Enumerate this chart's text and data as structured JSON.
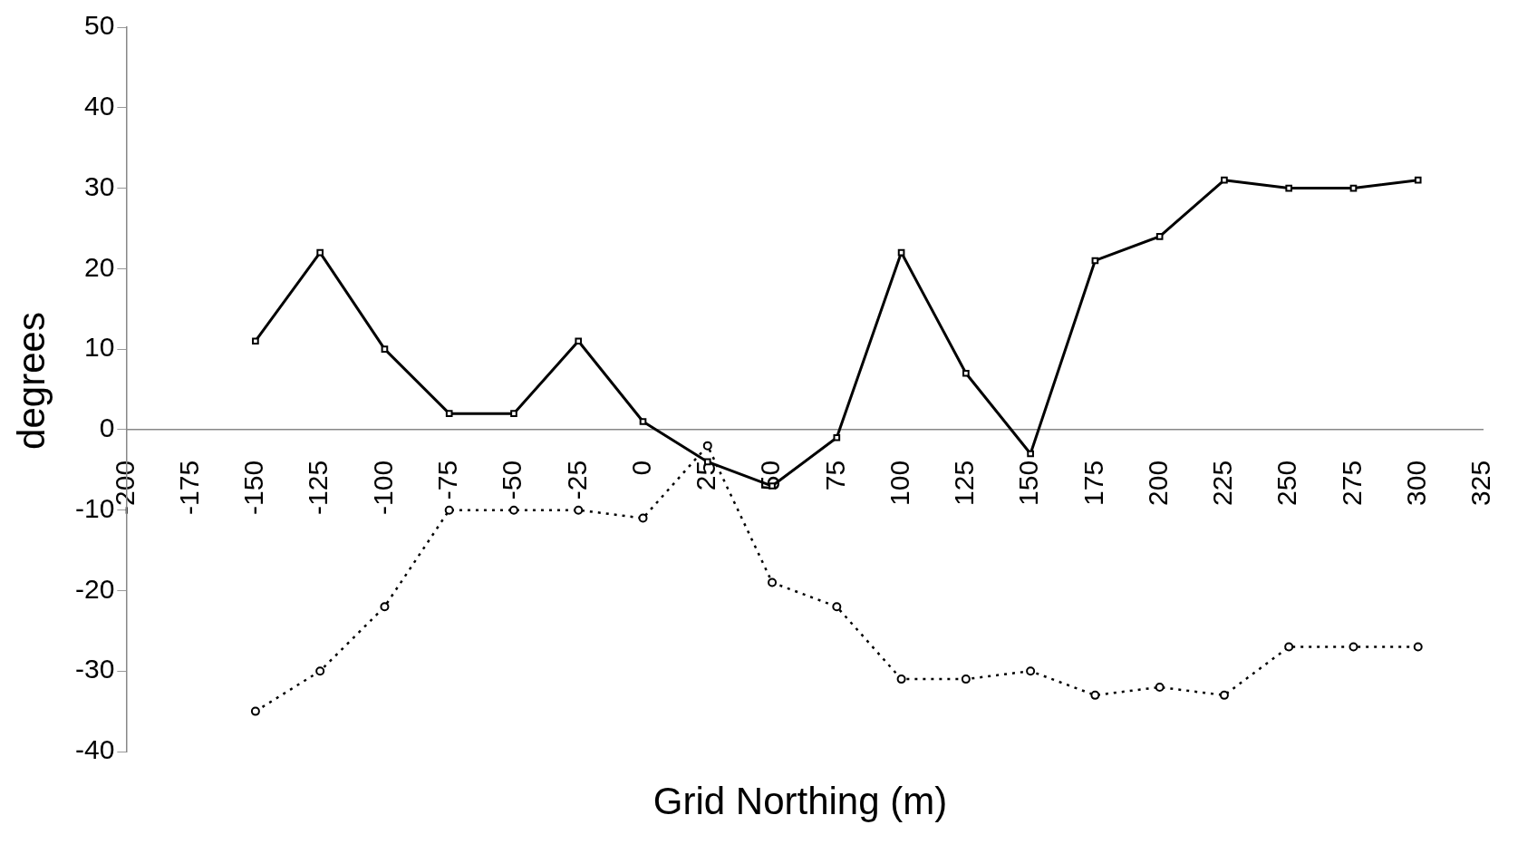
{
  "chart_data": {
    "type": "line",
    "xlabel": "Grid Northing (m)",
    "ylabel": "degrees",
    "x": [
      -150,
      -125,
      -100,
      -75,
      -50,
      -25,
      0,
      25,
      50,
      75,
      100,
      125,
      150,
      175,
      200,
      225,
      250,
      275,
      300
    ],
    "series": [
      {
        "color": "#000000",
        "line_style": "solid",
        "marker": "square",
        "values": [
          11,
          22,
          10,
          2,
          2,
          11,
          1,
          -4,
          -7,
          -1,
          22,
          7,
          -3,
          21,
          24,
          31,
          30,
          30,
          31
        ]
      },
      {
        "color": "#000000",
        "line_style": "dotted",
        "marker": "circle",
        "values": [
          -35,
          -30,
          -22,
          -10,
          -10,
          -10,
          -11,
          -2,
          -19,
          -22,
          -31,
          -31,
          -30,
          -33,
          -32,
          -33,
          -27,
          -27,
          -27
        ]
      }
    ],
    "xlim": [
      -200,
      325
    ],
    "xticks": [
      -200,
      -175,
      -150,
      -125,
      -100,
      -75,
      -50,
      -25,
      0,
      25,
      50,
      75,
      100,
      125,
      150,
      175,
      200,
      225,
      250,
      275,
      300,
      325
    ],
    "ylim": [
      -40,
      50
    ],
    "yticks": [
      -40,
      -30,
      -20,
      -10,
      0,
      10,
      20,
      30,
      40,
      50
    ],
    "grid": false,
    "legend": false
  }
}
